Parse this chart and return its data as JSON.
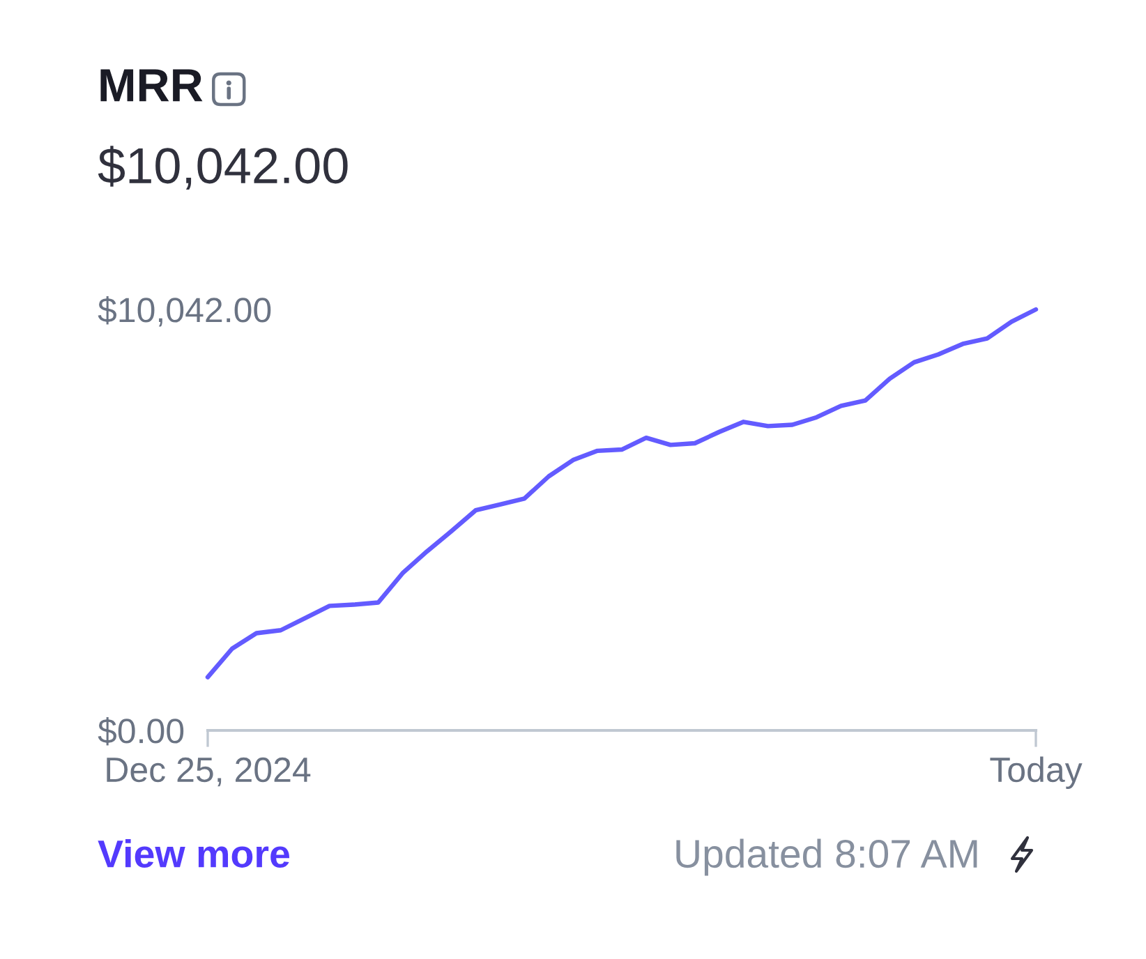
{
  "chart_data": {
    "type": "line",
    "title": "MRR",
    "subtitle": "$10,042.00",
    "categories": [
      "Dec 25, 2024",
      null,
      null,
      null,
      null,
      null,
      null,
      null,
      null,
      null,
      null,
      null,
      null,
      null,
      null,
      null,
      null,
      null,
      null,
      null,
      null,
      null,
      null,
      null,
      null,
      null,
      null,
      null,
      null,
      null,
      null,
      null,
      null,
      null,
      "Today"
    ],
    "series": [
      {
        "color": "#635bff",
        "values": [
          1270,
          1950,
          2320,
          2390,
          2680,
          2970,
          3000,
          3050,
          3750,
          4270,
          4750,
          5250,
          5390,
          5530,
          6060,
          6450,
          6670,
          6700,
          6980,
          6810,
          6850,
          7120,
          7360,
          7260,
          7290,
          7470,
          7740,
          7870,
          8390,
          8780,
          8970,
          9220,
          9350,
          9750,
          10042
        ]
      }
    ],
    "ylim": [
      0,
      10042
    ],
    "yticks": [
      {
        "value": 0,
        "label": "$0.00"
      },
      {
        "value": 10042,
        "label": "$10,042.00"
      }
    ],
    "annotations": [
      "View more",
      "Updated 8:07 AM"
    ]
  }
}
